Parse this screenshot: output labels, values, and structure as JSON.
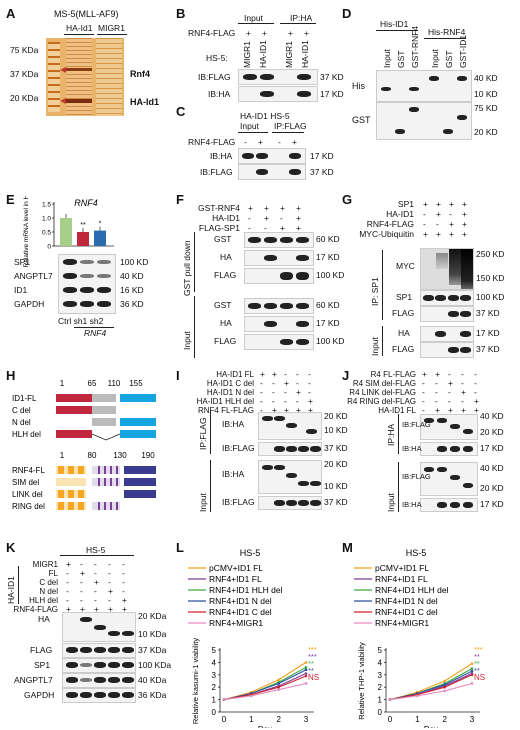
{
  "panels": {
    "A": "A",
    "B": "B",
    "C": "C",
    "D": "D",
    "E": "E",
    "F": "F",
    "G": "G",
    "H": "H",
    "I": "I",
    "J": "J",
    "K": "K",
    "L": "L",
    "M": "M"
  },
  "A": {
    "title": "MS-5(MLL-AF9)",
    "lanes": [
      "HA-Id1",
      "MIGR1"
    ],
    "markers": [
      "75 KDa",
      "37 KDa",
      "20 KDa"
    ],
    "rnf4": "Rnf4",
    "haid1": "HA-Id1"
  },
  "B": {
    "input": "Input",
    "ip": "IP:HA",
    "rnf4": "RNF4-FLAG",
    "hs5": "HS-5:",
    "lanes": [
      "MIGR1",
      "HA-ID1",
      "MIGR1",
      "HA-ID1"
    ],
    "plus": "+",
    "minus": "-",
    "rows": [
      "IB:FLAG",
      "IB:HA"
    ],
    "kd": [
      "37 KD",
      "17 KD"
    ]
  },
  "C": {
    "header": "HA-ID1  HS-5",
    "sub1": "Input",
    "sub2": "IP:FLAG",
    "rnf4": "RNF4-FLAG",
    "plus": "+",
    "minus": "-",
    "rows": [
      "IB:HA",
      "IB:FLAG"
    ],
    "kd": [
      "17 KD",
      "37 KD"
    ]
  },
  "D": {
    "g1": "His-ID1",
    "g2": "His-RNF4",
    "lanes": [
      "Input",
      "GST",
      "GST-RNF4",
      "Input",
      "GST",
      "GST-ID1"
    ],
    "rows": [
      "His",
      "GST"
    ],
    "kd": [
      "40 KD",
      "10 KD",
      "75 KD",
      "20 KD"
    ]
  },
  "E": {
    "gene": "RNF4",
    "ylabel": "Relative mRNA level in HS-5",
    "yticks": [
      "0",
      "0.5",
      "1.0",
      "1.5"
    ],
    "stars": [
      "**",
      "*"
    ],
    "rows": [
      "SP1",
      "ANGPTL7",
      "ID1",
      "GAPDH"
    ],
    "kd": [
      "100 KD",
      "40 KD",
      "16 KD",
      "36 KD"
    ],
    "xlabels": "Ctrl sh1 sh2",
    "xsub": "RNF4"
  },
  "F": {
    "conds": [
      "GST-RNF4",
      "HA-ID1",
      "FLAG-SP1"
    ],
    "signs": [
      [
        "+",
        "+",
        "+",
        "+"
      ],
      [
        "-",
        "+",
        "-",
        "+"
      ],
      [
        "-",
        "-",
        "+",
        "+"
      ]
    ],
    "side1": "GST pull down",
    "side2": "Input",
    "rows": [
      "GST",
      "HA",
      "FLAG",
      "GST",
      "HA",
      "FLAG"
    ],
    "kd": [
      "60 KD",
      "17 KD",
      "100 KD",
      "60 KD",
      "17 KD",
      "100 KD"
    ]
  },
  "G": {
    "conds": [
      "SP1",
      "HA-ID1",
      "RNF4-FLAG",
      "MYC-Ubiquitin"
    ],
    "signs": [
      [
        "+",
        "+",
        "+",
        "+"
      ],
      [
        "-",
        "+",
        "-",
        "+"
      ],
      [
        "-",
        "-",
        "+",
        "+"
      ],
      [
        "+",
        "+",
        "+",
        "+"
      ]
    ],
    "side1": "IP: SP1",
    "side2": "Input",
    "rows": [
      "MYC",
      "SP1",
      "FLAG",
      "HA",
      "FLAG"
    ],
    "kd": [
      "250 KD",
      "150 KD",
      "100 KD",
      "37 KD",
      "17 KD",
      "37 KD"
    ]
  },
  "H": {
    "nums1": [
      "1",
      "65",
      "110",
      "155"
    ],
    "rows1": [
      "ID1-FL",
      "C del",
      "N del",
      "HLH del"
    ],
    "nums2": [
      "1",
      "80",
      "130",
      "190"
    ],
    "rows2": [
      "RNF4-FL",
      "SIM del",
      "LINK del",
      "RING del"
    ]
  },
  "I": {
    "conds": [
      "HA-ID1 FL",
      "HA-ID1 C del",
      "HA-ID1 N del",
      "HA-ID1 HLH del",
      "RNF4 FL-FLAG"
    ],
    "signs": [
      [
        "+",
        "+",
        "-",
        "-",
        "-"
      ],
      [
        "-",
        "-",
        "+",
        "-",
        "-"
      ],
      [
        "-",
        "-",
        "-",
        "+",
        "-"
      ],
      [
        "-",
        "-",
        "-",
        "-",
        "+"
      ],
      [
        "-",
        "+",
        "+",
        "+",
        "+"
      ]
    ],
    "side1": "IP:FLAG",
    "side2": "Input",
    "rows": [
      "IB:HA",
      "IB:FLAG",
      "IB:HA",
      "IB:FLAG"
    ],
    "kd": [
      "20 KD",
      "10 KD",
      "37 KD",
      "20 KD",
      "10 KD",
      "37 KD"
    ]
  },
  "J": {
    "conds": [
      "R4 FL-FLAG",
      "R4 SIM del-FLAG",
      "R4 LINK del-FLAG",
      "R4 RING del-FLAG",
      "HA-ID1 FL"
    ],
    "signs": [
      [
        "+",
        "+",
        "-",
        "-",
        "-"
      ],
      [
        "-",
        "-",
        "+",
        "-",
        "-"
      ],
      [
        "-",
        "-",
        "-",
        "+",
        "-"
      ],
      [
        "-",
        "-",
        "-",
        "-",
        "+"
      ],
      [
        "-",
        "+",
        "+",
        "+",
        "+"
      ]
    ],
    "side1": "IP:HA",
    "side2": "Input",
    "rows": [
      "IB:FLAG",
      "IB:HA",
      "IB:FLAG",
      "IB:HA"
    ],
    "kd": [
      "40 KD",
      "20 KD",
      "17 KD",
      "40 KD",
      "20 KD",
      "17 KD"
    ]
  },
  "K": {
    "hs5": "HS-5",
    "side": "HA-ID1",
    "conds": [
      "MIGR1",
      "FL",
      "C del",
      "N del",
      "HLH del",
      "RNF4-FLAG"
    ],
    "signs": [
      [
        "+",
        "-",
        "-",
        "-",
        "-"
      ],
      [
        "-",
        "+",
        "-",
        "-",
        "-"
      ],
      [
        "-",
        "-",
        "+",
        "-",
        "-"
      ],
      [
        "-",
        "-",
        "-",
        "+",
        "-"
      ],
      [
        "-",
        "-",
        "-",
        "-",
        "+"
      ],
      [
        "+",
        "+",
        "+",
        "+",
        "+"
      ]
    ],
    "rows": [
      "HA",
      "FLAG",
      "SP1",
      "ANGPTL7",
      "GAPDH"
    ],
    "kd": [
      "20 KDa",
      "10 KDa",
      "37 KDa",
      "100 KDa",
      "40 KDa",
      "36 KDa"
    ]
  },
  "L": {
    "title": "HS-5",
    "legend": [
      "pCMV+ID1 FL",
      "RNF4+ID1 FL",
      "RNF4+ID1 HLH del",
      "RNF4+ID1 N del",
      "RNF4+ID1 C del",
      "RNF4+MIGR1"
    ],
    "ylabel": "Relative kasumi-1 viability",
    "xlabel": "Day",
    "stars": [
      "***",
      "***",
      "**",
      "**",
      "NS"
    ]
  },
  "M": {
    "title": "HS-5",
    "legend": [
      "pCMV+ID1 FL",
      "RNF4+ID1 FL",
      "RNF4+ID1 HLH del",
      "RNF4+ID1 N del",
      "RNF4+ID1 C del",
      "RNF4+MIGR1"
    ],
    "ylabel": "Relative THP-1 viability",
    "xlabel": "Day",
    "stars": [
      "***",
      "**",
      "**",
      "**",
      "NS"
    ]
  },
  "colors": {
    "orange": "#f4a11d",
    "purple": "#7b3f99",
    "green": "#3aa845",
    "blue": "#2c4f9e",
    "red": "#d5202f",
    "pink": "#e58bbf",
    "ctrlbar": "#a8cf8a",
    "sh1bar": "#c0273c",
    "sh2bar": "#2b6cb0",
    "hlh": "#16a5e0",
    "ring": "#3b3c8f",
    "sim": "#f6a623"
  },
  "chart_data": [
    {
      "type": "bar",
      "title": "RNF4",
      "categories": [
        "Ctrl",
        "sh1",
        "sh2"
      ],
      "values": [
        1.0,
        0.5,
        0.55
      ],
      "ylabel": "Relative mRNA level in HS-5",
      "ylim": [
        0,
        1.5
      ]
    },
    {
      "type": "line",
      "title": "HS-5",
      "xlabel": "Day",
      "ylabel": "Relative kasumi-1 viability",
      "x": [
        0,
        1,
        2,
        3
      ],
      "ylim": [
        0,
        5
      ],
      "series": [
        {
          "name": "pCMV+ID1 FL",
          "values": [
            1,
            1.6,
            2.6,
            4.0
          ]
        },
        {
          "name": "RNF4+ID1 FL",
          "values": [
            1,
            1.4,
            2.1,
            3.1
          ]
        },
        {
          "name": "RNF4+ID1 HLH del",
          "values": [
            1,
            1.5,
            2.4,
            3.6
          ]
        },
        {
          "name": "RNF4+ID1 N del",
          "values": [
            1,
            1.5,
            2.3,
            3.4
          ]
        },
        {
          "name": "RNF4+ID1 C del",
          "values": [
            1,
            1.4,
            2.0,
            2.9
          ]
        },
        {
          "name": "RNF4+MIGR1",
          "values": [
            1,
            1.3,
            1.8,
            2.3
          ]
        }
      ]
    },
    {
      "type": "line",
      "title": "HS-5",
      "xlabel": "Day",
      "ylabel": "Relative THP-1 viability",
      "x": [
        0,
        1,
        2,
        3
      ],
      "ylim": [
        0,
        5
      ],
      "series": [
        {
          "name": "pCMV+ID1 FL",
          "values": [
            1,
            1.6,
            2.5,
            3.9
          ]
        },
        {
          "name": "RNF4+ID1 FL",
          "values": [
            1,
            1.4,
            2.1,
            3.1
          ]
        },
        {
          "name": "RNF4+ID1 HLH del",
          "values": [
            1,
            1.5,
            2.3,
            3.5
          ]
        },
        {
          "name": "RNF4+ID1 N del",
          "values": [
            1,
            1.5,
            2.2,
            3.3
          ]
        },
        {
          "name": "RNF4+ID1 C del",
          "values": [
            1,
            1.4,
            2.0,
            3.0
          ]
        },
        {
          "name": "RNF4+MIGR1",
          "values": [
            1,
            1.3,
            1.7,
            2.3
          ]
        }
      ]
    }
  ]
}
